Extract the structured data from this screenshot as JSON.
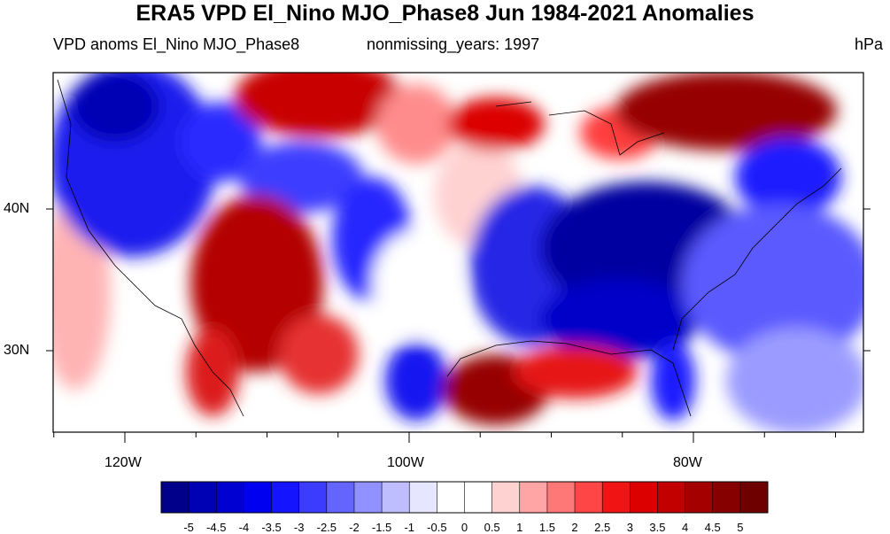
{
  "title": "ERA5 VPD El_Nino MJO_Phase8 Jun 1984-2021 Anomalies",
  "subtitle_left": "VPD anoms El_Nino MJO_Phase8",
  "subtitle_center": "nonmissing_years: 1997",
  "units": "hPa",
  "map": {
    "lat_labels": [
      "40N",
      "30N"
    ],
    "lon_labels": [
      "120W",
      "100W",
      "80W"
    ],
    "anomaly_regions": [
      {
        "region": "Pacific Northwest",
        "anomaly": "negative"
      },
      {
        "region": "Canadian Prairies / Northern Rockies",
        "anomaly": "positive"
      },
      {
        "region": "Southwest / Four Corners",
        "anomaly": "positive"
      },
      {
        "region": "Southern Plains",
        "anomaly": "negative"
      },
      {
        "region": "Upper Midwest / Great Lakes",
        "anomaly": "positive"
      },
      {
        "region": "Eastern Canada",
        "anomaly": "positive"
      },
      {
        "region": "Eastern US / Southeast",
        "anomaly": "negative"
      },
      {
        "region": "Gulf of Mexico",
        "anomaly": "positive"
      },
      {
        "region": "Western Atlantic",
        "anomaly": "negative"
      }
    ]
  },
  "colorbar": {
    "labels": [
      "-5",
      "-4.5",
      "-4",
      "-3.5",
      "-3",
      "-2.5",
      "-2",
      "-1.5",
      "-1",
      "-0.5",
      "0",
      "0.5",
      "1",
      "1.5",
      "2",
      "2.5",
      "3",
      "3.5",
      "4",
      "4.5",
      "5"
    ],
    "colors": [
      "#00008b",
      "#0000b4",
      "#0000d2",
      "#0000f0",
      "#1414ff",
      "#3c3cff",
      "#6464ff",
      "#9191ff",
      "#bebeff",
      "#e6e6ff",
      "#ffffff",
      "#ffffff",
      "#ffd2d2",
      "#ffa5a5",
      "#ff7878",
      "#ff4646",
      "#f01414",
      "#dc0000",
      "#c30000",
      "#a50000",
      "#870000",
      "#6e0000"
    ]
  }
}
